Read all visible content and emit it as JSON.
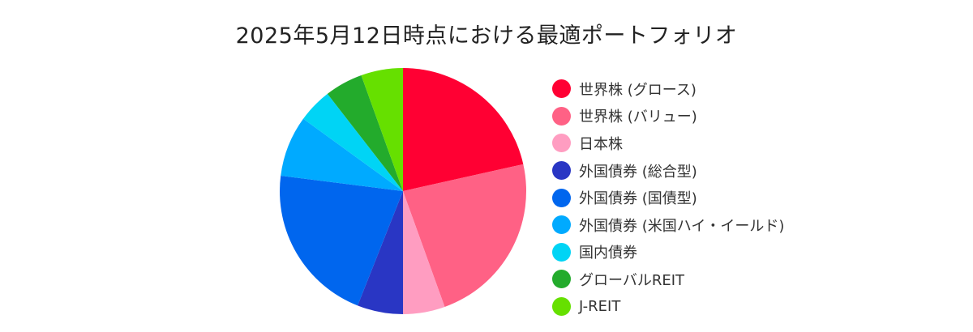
{
  "chart_data": {
    "type": "pie",
    "title": "2025年5月12日時点における最適ポートフォリオ",
    "slices": [
      {
        "label": "世界株 (グロース)",
        "value": 21.5,
        "color": "#ff0033"
      },
      {
        "label": "世界株 (バリュー)",
        "value": 23.0,
        "color": "#ff6185"
      },
      {
        "label": "日本株",
        "value": 5.5,
        "color": "#ff9dc1"
      },
      {
        "label": "外国債券 (総合型)",
        "value": 6.0,
        "color": "#2936c4"
      },
      {
        "label": "外国債券 (国債型)",
        "value": 21.0,
        "color": "#0066ee"
      },
      {
        "label": "外国債券 (米国ハイ・イールド)",
        "value": 8.0,
        "color": "#00aaff"
      },
      {
        "label": "国内債券",
        "value": 4.5,
        "color": "#00d4f5"
      },
      {
        "label": "グローバルREIT",
        "value": 5.0,
        "color": "#23ab2c"
      },
      {
        "label": "J-REIT",
        "value": 5.5,
        "color": "#66e000"
      }
    ],
    "start_angle": "12 o'clock",
    "direction": "clockwise",
    "legend_position": "right"
  }
}
